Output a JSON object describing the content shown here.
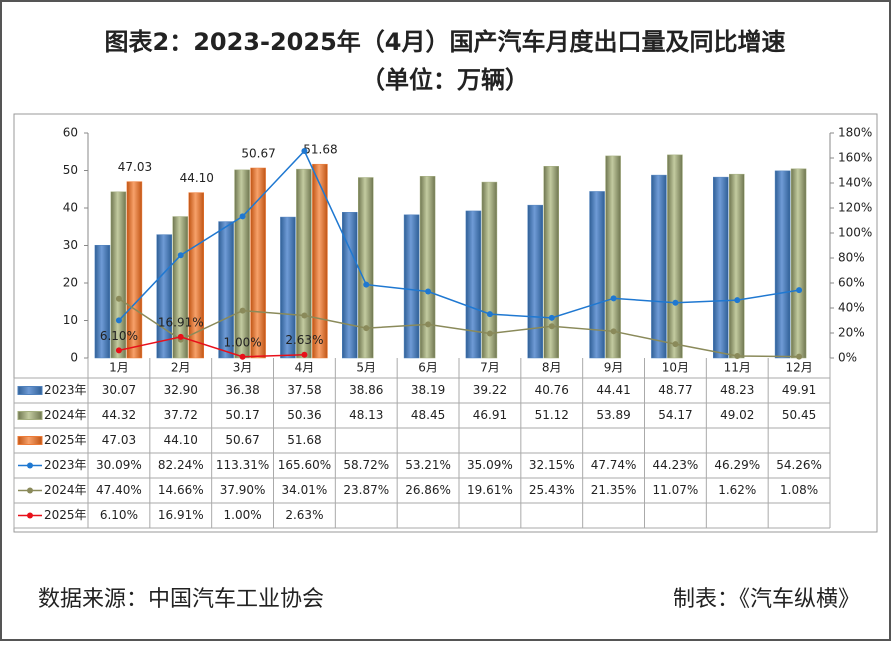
{
  "chart_data": {
    "type": "combo",
    "title": "图表2：2023-2025年（4月）国产汽车月度出口量及同比增速",
    "subtitle": "（单位：万辆）",
    "source": "数据来源：中国汽车工业协会",
    "credit": "制表：《汽车纵横》",
    "categories": [
      "1月",
      "2月",
      "3月",
      "4月",
      "5月",
      "6月",
      "7月",
      "8月",
      "9月",
      "10月",
      "11月",
      "12月"
    ],
    "ylim": [
      0,
      60
    ],
    "yticks": [
      0,
      10,
      20,
      30,
      40,
      50,
      60
    ],
    "y2lim": [
      0,
      180
    ],
    "y2ticks": [
      {
        "value": 0,
        "label": "0%"
      },
      {
        "value": 20,
        "label": "20%"
      },
      {
        "value": 40,
        "label": "40%"
      },
      {
        "value": 60,
        "label": "60%"
      },
      {
        "value": 80,
        "label": "80%"
      },
      {
        "value": 100,
        "label": "100%"
      },
      {
        "value": 120,
        "label": "120%"
      },
      {
        "value": 140,
        "label": "140%"
      },
      {
        "value": 160,
        "label": "160%"
      },
      {
        "value": 180,
        "label": "180%"
      }
    ],
    "grid": false,
    "series": [
      {
        "name": "2023年",
        "type": "bar",
        "color": "#4f81bd",
        "data_labels": false,
        "values": [
          30.07,
          32.9,
          36.38,
          37.58,
          38.86,
          38.19,
          39.22,
          40.76,
          44.41,
          48.77,
          48.23,
          49.91
        ],
        "value_labels": [
          "30.07",
          "32.90",
          "36.38",
          "37.58",
          "38.86",
          "38.19",
          "39.22",
          "40.76",
          "44.41",
          "48.77",
          "48.23",
          "49.91"
        ]
      },
      {
        "name": "2024年",
        "type": "bar",
        "color": "#a3ad7e",
        "data_labels": false,
        "values": [
          44.32,
          37.72,
          50.17,
          50.36,
          48.13,
          48.45,
          46.91,
          51.12,
          53.89,
          54.17,
          49.02,
          50.45
        ],
        "value_labels": [
          "44.32",
          "37.72",
          "50.17",
          "50.36",
          "48.13",
          "48.45",
          "46.91",
          "51.12",
          "53.89",
          "54.17",
          "49.02",
          "50.45"
        ]
      },
      {
        "name": "2025年",
        "type": "bar",
        "color": "#ee7b37",
        "data_labels": true,
        "values": [
          47.03,
          44.1,
          50.67,
          51.68,
          null,
          null,
          null,
          null,
          null,
          null,
          null,
          null
        ],
        "value_labels": [
          "47.03",
          "44.10",
          "50.67",
          "51.68",
          null,
          null,
          null,
          null,
          null,
          null,
          null,
          null
        ]
      },
      {
        "name": "2023年",
        "type": "line",
        "axis": "y2",
        "color": "#1f78d1",
        "data_labels": false,
        "values": [
          30.09,
          82.24,
          113.31,
          165.6,
          58.72,
          53.21,
          35.09,
          32.15,
          47.74,
          44.23,
          46.29,
          54.26
        ],
        "value_labels": [
          "30.09%",
          "82.24%",
          "113.31%",
          "165.60%",
          "58.72%",
          "53.21%",
          "35.09%",
          "32.15%",
          "47.74%",
          "44.23%",
          "46.29%",
          "54.26%"
        ]
      },
      {
        "name": "2024年",
        "type": "line",
        "axis": "y2",
        "color": "#8a8a5a",
        "data_labels": false,
        "values": [
          47.4,
          14.66,
          37.9,
          34.01,
          23.87,
          26.86,
          19.61,
          25.43,
          21.35,
          11.07,
          1.62,
          1.08
        ],
        "value_labels": [
          "47.40%",
          "14.66%",
          "37.90%",
          "34.01%",
          "23.87%",
          "26.86%",
          "19.61%",
          "25.43%",
          "21.35%",
          "11.07%",
          "1.62%",
          "1.08%"
        ]
      },
      {
        "name": "2025年",
        "type": "line",
        "axis": "y2",
        "color": "#e8101a",
        "data_labels": true,
        "values": [
          6.1,
          16.91,
          1.0,
          2.63,
          null,
          null,
          null,
          null,
          null,
          null,
          null,
          null
        ],
        "value_labels": [
          "6.10%",
          "16.91%",
          "1.00%",
          "2.63%",
          null,
          null,
          null,
          null,
          null,
          null,
          null,
          null
        ]
      }
    ]
  }
}
